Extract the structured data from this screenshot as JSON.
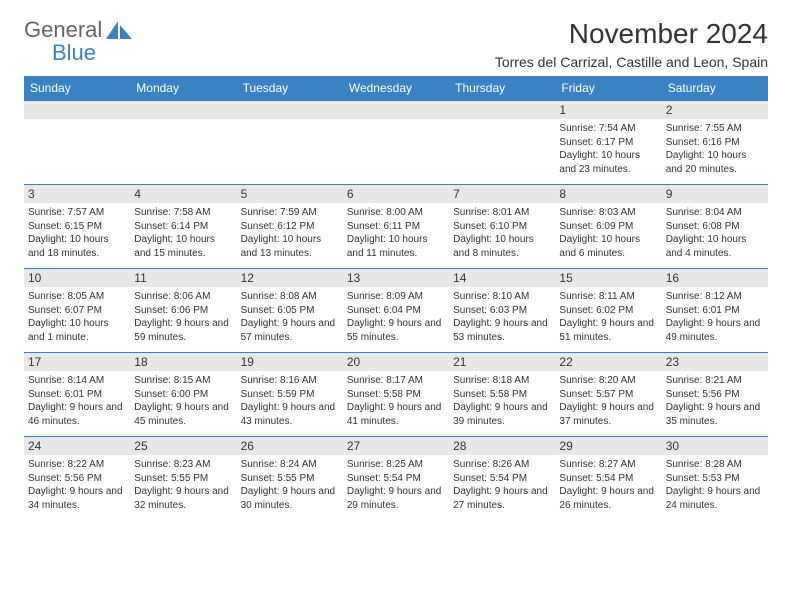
{
  "logo": {
    "word1": "General",
    "word2": "Blue",
    "word1_color": "#6b6b6b",
    "word2_color": "#3b82c4"
  },
  "title": "November 2024",
  "location": "Torres del Carrizal, Castille and Leon, Spain",
  "colors": {
    "header_bg": "#3b82c4",
    "header_fg": "#ffffff",
    "daynum_bg": "#e8e8e8",
    "rule": "#3b82c4",
    "text": "#333333"
  },
  "day_names": [
    "Sunday",
    "Monday",
    "Tuesday",
    "Wednesday",
    "Thursday",
    "Friday",
    "Saturday"
  ],
  "weeks": [
    [
      null,
      null,
      null,
      null,
      null,
      {
        "n": "1",
        "sunrise": "7:54 AM",
        "sunset": "6:17 PM",
        "daylight": "10 hours and 23 minutes."
      },
      {
        "n": "2",
        "sunrise": "7:55 AM",
        "sunset": "6:16 PM",
        "daylight": "10 hours and 20 minutes."
      }
    ],
    [
      {
        "n": "3",
        "sunrise": "7:57 AM",
        "sunset": "6:15 PM",
        "daylight": "10 hours and 18 minutes."
      },
      {
        "n": "4",
        "sunrise": "7:58 AM",
        "sunset": "6:14 PM",
        "daylight": "10 hours and 15 minutes."
      },
      {
        "n": "5",
        "sunrise": "7:59 AM",
        "sunset": "6:12 PM",
        "daylight": "10 hours and 13 minutes."
      },
      {
        "n": "6",
        "sunrise": "8:00 AM",
        "sunset": "6:11 PM",
        "daylight": "10 hours and 11 minutes."
      },
      {
        "n": "7",
        "sunrise": "8:01 AM",
        "sunset": "6:10 PM",
        "daylight": "10 hours and 8 minutes."
      },
      {
        "n": "8",
        "sunrise": "8:03 AM",
        "sunset": "6:09 PM",
        "daylight": "10 hours and 6 minutes."
      },
      {
        "n": "9",
        "sunrise": "8:04 AM",
        "sunset": "6:08 PM",
        "daylight": "10 hours and 4 minutes."
      }
    ],
    [
      {
        "n": "10",
        "sunrise": "8:05 AM",
        "sunset": "6:07 PM",
        "daylight": "10 hours and 1 minute."
      },
      {
        "n": "11",
        "sunrise": "8:06 AM",
        "sunset": "6:06 PM",
        "daylight": "9 hours and 59 minutes."
      },
      {
        "n": "12",
        "sunrise": "8:08 AM",
        "sunset": "6:05 PM",
        "daylight": "9 hours and 57 minutes."
      },
      {
        "n": "13",
        "sunrise": "8:09 AM",
        "sunset": "6:04 PM",
        "daylight": "9 hours and 55 minutes."
      },
      {
        "n": "14",
        "sunrise": "8:10 AM",
        "sunset": "6:03 PM",
        "daylight": "9 hours and 53 minutes."
      },
      {
        "n": "15",
        "sunrise": "8:11 AM",
        "sunset": "6:02 PM",
        "daylight": "9 hours and 51 minutes."
      },
      {
        "n": "16",
        "sunrise": "8:12 AM",
        "sunset": "6:01 PM",
        "daylight": "9 hours and 49 minutes."
      }
    ],
    [
      {
        "n": "17",
        "sunrise": "8:14 AM",
        "sunset": "6:01 PM",
        "daylight": "9 hours and 46 minutes."
      },
      {
        "n": "18",
        "sunrise": "8:15 AM",
        "sunset": "6:00 PM",
        "daylight": "9 hours and 45 minutes."
      },
      {
        "n": "19",
        "sunrise": "8:16 AM",
        "sunset": "5:59 PM",
        "daylight": "9 hours and 43 minutes."
      },
      {
        "n": "20",
        "sunrise": "8:17 AM",
        "sunset": "5:58 PM",
        "daylight": "9 hours and 41 minutes."
      },
      {
        "n": "21",
        "sunrise": "8:18 AM",
        "sunset": "5:58 PM",
        "daylight": "9 hours and 39 minutes."
      },
      {
        "n": "22",
        "sunrise": "8:20 AM",
        "sunset": "5:57 PM",
        "daylight": "9 hours and 37 minutes."
      },
      {
        "n": "23",
        "sunrise": "8:21 AM",
        "sunset": "5:56 PM",
        "daylight": "9 hours and 35 minutes."
      }
    ],
    [
      {
        "n": "24",
        "sunrise": "8:22 AM",
        "sunset": "5:56 PM",
        "daylight": "9 hours and 34 minutes."
      },
      {
        "n": "25",
        "sunrise": "8:23 AM",
        "sunset": "5:55 PM",
        "daylight": "9 hours and 32 minutes."
      },
      {
        "n": "26",
        "sunrise": "8:24 AM",
        "sunset": "5:55 PM",
        "daylight": "9 hours and 30 minutes."
      },
      {
        "n": "27",
        "sunrise": "8:25 AM",
        "sunset": "5:54 PM",
        "daylight": "9 hours and 29 minutes."
      },
      {
        "n": "28",
        "sunrise": "8:26 AM",
        "sunset": "5:54 PM",
        "daylight": "9 hours and 27 minutes."
      },
      {
        "n": "29",
        "sunrise": "8:27 AM",
        "sunset": "5:54 PM",
        "daylight": "9 hours and 26 minutes."
      },
      {
        "n": "30",
        "sunrise": "8:28 AM",
        "sunset": "5:53 PM",
        "daylight": "9 hours and 24 minutes."
      }
    ]
  ],
  "labels": {
    "sunrise": "Sunrise:",
    "sunset": "Sunset:",
    "daylight": "Daylight:"
  }
}
